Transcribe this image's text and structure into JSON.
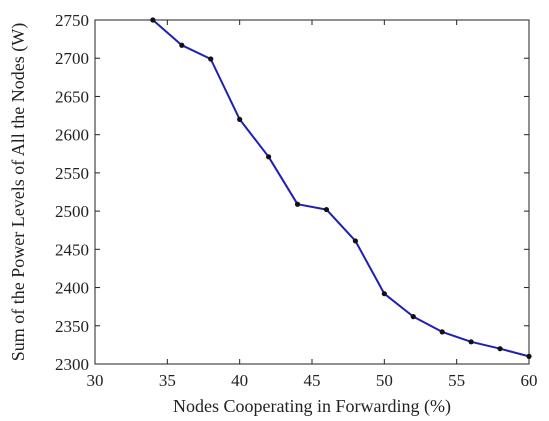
{
  "chart_data": {
    "type": "line",
    "xlabel": "Nodes Cooperating in Forwarding (%)",
    "ylabel": "Sum of the Power Levels of All the Nodes (W)",
    "xlim": [
      30,
      60
    ],
    "ylim": [
      2300,
      2750
    ],
    "xticks": [
      30,
      35,
      40,
      45,
      50,
      55,
      60
    ],
    "yticks": [
      2300,
      2350,
      2400,
      2450,
      2500,
      2550,
      2600,
      2650,
      2700,
      2750
    ],
    "grid": false,
    "series": [
      {
        "color": "#1f1fb4",
        "marker": "dot",
        "x": [
          34,
          36,
          38,
          40,
          42,
          44,
          46,
          48,
          50,
          52,
          54,
          56,
          58,
          60
        ],
        "y": [
          2750,
          2717,
          2699,
          2620,
          2571,
          2509,
          2502,
          2461,
          2392,
          2362,
          2342,
          2329,
          2320,
          2310
        ]
      }
    ]
  }
}
